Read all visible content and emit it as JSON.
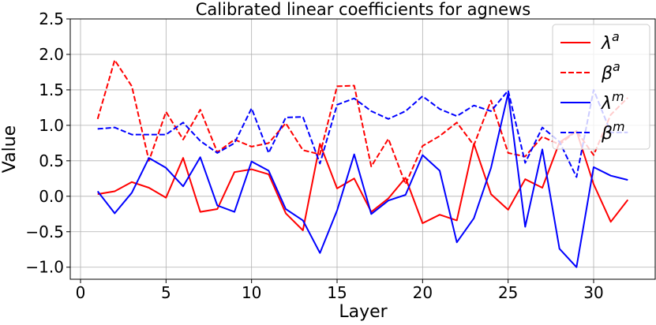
{
  "chart_data": {
    "type": "line",
    "title": "Calibrated linear coefficients for agnews",
    "xlabel": "Layer",
    "ylabel": "Value",
    "xlim": [
      -0.6,
      33.6
    ],
    "ylim": [
      -1.17,
      2.5
    ],
    "xticks": [
      0,
      5,
      10,
      15,
      20,
      25,
      30
    ],
    "yticks": [
      -1.0,
      -0.5,
      0.0,
      0.5,
      1.0,
      1.5,
      2.0,
      2.5
    ],
    "xtick_labels": [
      "0",
      "5",
      "10",
      "15",
      "20",
      "25",
      "30"
    ],
    "ytick_labels": [
      "−1.0",
      "−0.5",
      "0.0",
      "0.5",
      "1.0",
      "1.5",
      "2.0",
      "2.5"
    ],
    "grid": true,
    "legend_position": "top-right",
    "x": [
      1,
      2,
      3,
      4,
      5,
      6,
      7,
      8,
      9,
      10,
      11,
      12,
      13,
      14,
      15,
      16,
      17,
      18,
      19,
      20,
      21,
      22,
      23,
      24,
      25,
      26,
      27,
      28,
      29,
      30,
      31,
      32
    ],
    "series": [
      {
        "name": "λ",
        "superscript": "a",
        "color": "#ff0000",
        "dash": "solid",
        "values": [
          0.03,
          0.07,
          0.2,
          0.12,
          -0.02,
          0.54,
          -0.22,
          -0.18,
          0.34,
          0.38,
          0.31,
          -0.24,
          -0.48,
          0.74,
          0.11,
          0.25,
          -0.22,
          -0.03,
          0.26,
          -0.38,
          -0.26,
          -0.34,
          0.74,
          0.03,
          -0.19,
          0.24,
          0.12,
          0.76,
          0.92,
          0.17,
          -0.36,
          -0.05
        ]
      },
      {
        "name": "β",
        "superscript": "a",
        "color": "#ff0000",
        "dash": "dashed",
        "values": [
          1.09,
          1.92,
          1.55,
          0.5,
          1.19,
          0.8,
          1.22,
          0.62,
          0.8,
          0.7,
          0.75,
          1.03,
          0.65,
          0.59,
          1.55,
          1.56,
          0.42,
          0.81,
          0.17,
          0.71,
          0.85,
          1.04,
          0.72,
          1.35,
          0.61,
          0.56,
          0.84,
          0.73,
          0.92,
          0.58,
          1.15,
          1.39
        ]
      },
      {
        "name": "λ",
        "superscript": "m",
        "color": "#0000ff",
        "dash": "solid",
        "values": [
          0.07,
          -0.24,
          0.05,
          0.54,
          0.4,
          0.14,
          0.55,
          -0.13,
          -0.22,
          0.49,
          0.36,
          -0.18,
          -0.34,
          -0.8,
          -0.2,
          0.59,
          -0.25,
          -0.06,
          0.02,
          0.58,
          0.36,
          -0.65,
          -0.31,
          0.4,
          1.45,
          -0.43,
          0.66,
          -0.74,
          -1.0,
          0.41,
          0.29,
          0.23
        ]
      },
      {
        "name": "β",
        "superscript": "m",
        "color": "#0000ff",
        "dash": "dashed",
        "values": [
          0.95,
          0.97,
          0.87,
          0.87,
          0.87,
          1.04,
          0.78,
          0.61,
          0.75,
          1.24,
          0.61,
          1.11,
          1.12,
          0.46,
          1.29,
          1.38,
          1.2,
          1.09,
          1.2,
          1.41,
          1.23,
          1.13,
          1.28,
          1.2,
          1.49,
          0.47,
          0.97,
          0.77,
          0.27,
          1.5,
          0.9,
          0.9
        ]
      }
    ]
  }
}
